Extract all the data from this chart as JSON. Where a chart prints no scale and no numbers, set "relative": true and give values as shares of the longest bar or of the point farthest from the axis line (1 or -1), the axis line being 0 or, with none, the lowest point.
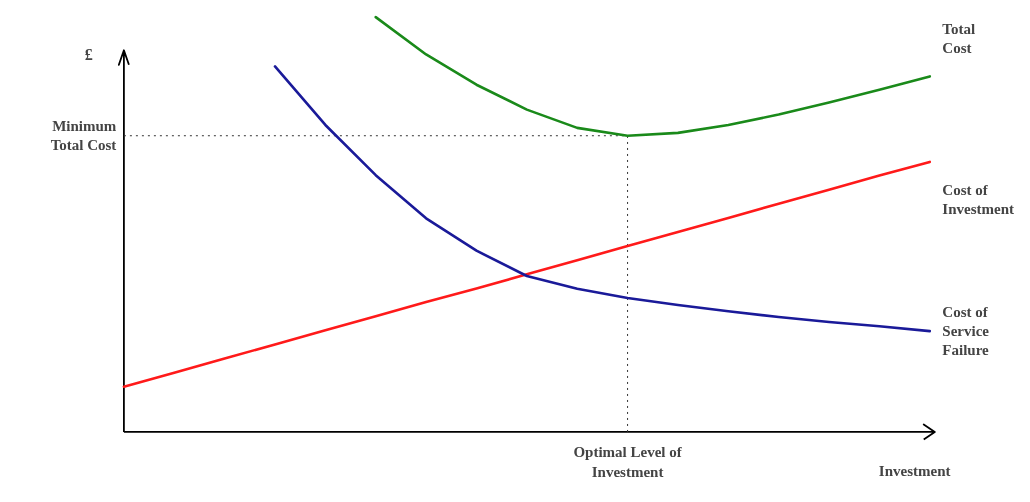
{
  "chart_data": {
    "type": "line",
    "relative": true,
    "xlabel": "Investment",
    "ylabel": "£",
    "categories": [
      null,
      null,
      null,
      null,
      null,
      null,
      null,
      null,
      null,
      null,
      null,
      null,
      null,
      null,
      null,
      null,
      null
    ],
    "series": [
      {
        "name": "Total Cost",
        "color": "#1a8a1a",
        "values": [
          null,
          null,
          null,
          null,
          null,
          1.0,
          0.91,
          0.837,
          0.777,
          0.733,
          0.714,
          0.721,
          0.74,
          0.765,
          0.794,
          0.825,
          0.857
        ]
      },
      {
        "name": "Cost of Investment",
        "color": "#ff1a1a",
        "values": [
          0.109,
          0.143,
          0.177,
          0.211,
          0.245,
          0.279,
          0.313,
          0.346,
          0.38,
          0.414,
          0.448,
          0.482,
          0.516,
          0.55,
          0.584,
          0.618,
          0.651
        ]
      },
      {
        "name": "Cost of Service Failure",
        "color": "#1a1a99",
        "values": [
          null,
          null,
          null,
          0.881,
          0.74,
          0.619,
          0.515,
          0.437,
          0.376,
          0.345,
          0.323,
          0.306,
          0.291,
          0.277,
          0.265,
          0.255,
          0.243
        ]
      }
    ],
    "annotations": [
      "Optimal Level of Investment"
    ],
    "ref_lines": [
      {
        "axis": "y",
        "value": 0.714,
        "label": "Minimum Total Cost",
        "line_style": "dotted"
      }
    ]
  }
}
